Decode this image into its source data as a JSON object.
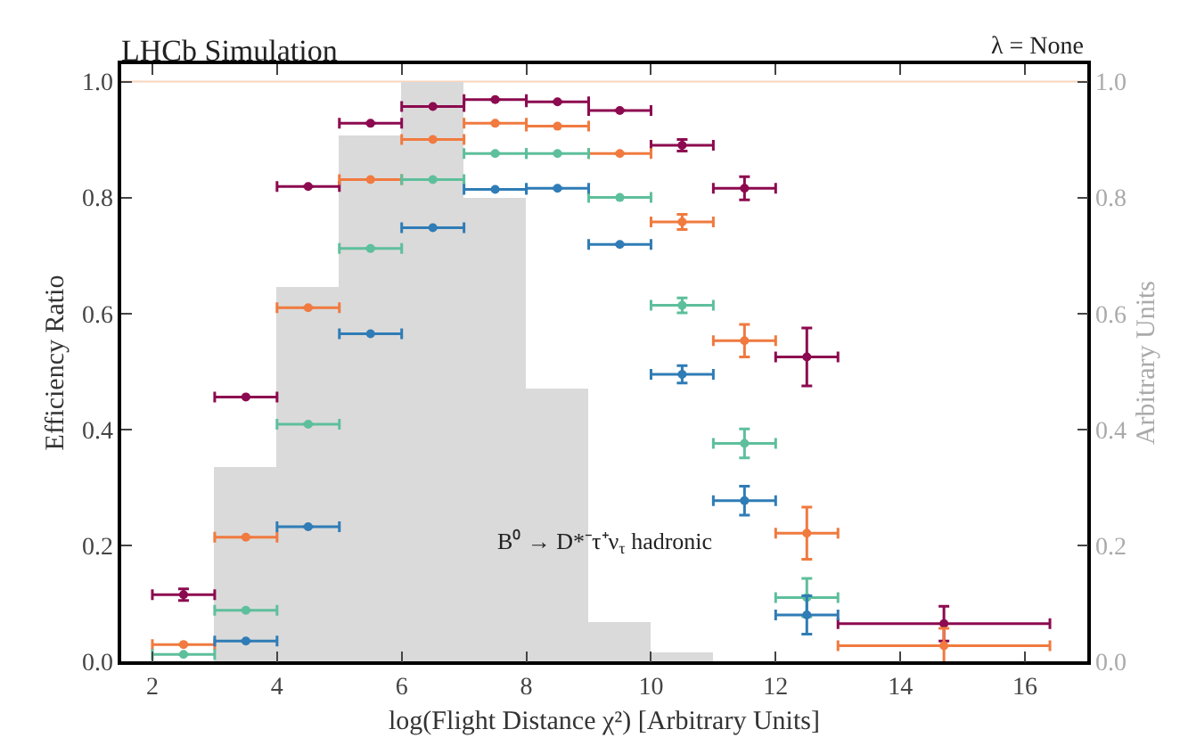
{
  "chart_data": {
    "type": "scatter",
    "title": "LHCb Simulation",
    "xlabel": "log(Flight Distance χ²) [Arbitrary Units]",
    "ylabel": "Efficiency Ratio",
    "y2label": "Arbitrary Units",
    "annotations": [
      "B⁰ → D*⁻τ⁺ν$_{τ}$ hadronic",
      "λ = None"
    ],
    "xlim": [
      1.5,
      17
    ],
    "xticks": [
      2,
      4,
      6,
      8,
      10,
      12,
      14,
      16
    ],
    "ylim": [
      0,
      1.03
    ],
    "yticks": [
      {
        "value": 0,
        "label": "0.0"
      },
      {
        "value": 0.2,
        "label": "0.2"
      },
      {
        "value": 0.4,
        "label": "0.4"
      },
      {
        "value": 0.6,
        "label": "0.6"
      },
      {
        "value": 0.8,
        "label": "0.8"
      },
      {
        "value": 1.0,
        "label": "1.0"
      }
    ],
    "y2lim": [
      0,
      1.03
    ],
    "y2ticks": [
      {
        "value": 0,
        "label": "0.0"
      },
      {
        "value": 0.2,
        "label": "0.2"
      },
      {
        "value": 0.4,
        "label": "0.4"
      },
      {
        "value": 0.6,
        "label": "0.6"
      },
      {
        "value": 0.8,
        "label": "0.8"
      },
      {
        "value": 1.0,
        "label": "1.0"
      }
    ],
    "grid": false,
    "marker": "circle",
    "ref_lines": [
      {
        "axis": "y",
        "value": 1.0,
        "color": "#f8d5bd"
      }
    ],
    "series": [
      {
        "type": "histogram",
        "axis": "y2",
        "color": "#dadada",
        "bins": [
          3,
          4,
          5,
          6,
          7,
          8,
          9,
          10,
          11
        ],
        "values": [
          0.334,
          0.645,
          0.908,
          1.0,
          0.798,
          0.469,
          0.067,
          0.015
        ]
      },
      {
        "color": "#8c0a4f",
        "x": [
          2.5,
          3.5,
          4.5,
          5.5,
          6.5,
          7.5,
          8.5,
          9.5,
          10.5,
          11.5,
          12.5,
          14.7
        ],
        "values": [
          0.115,
          0.456,
          0.819,
          0.928,
          0.957,
          0.969,
          0.965,
          0.95,
          0.89,
          0.816,
          0.525,
          0.065
        ],
        "errors": [
          0.01,
          null,
          null,
          null,
          null,
          null,
          null,
          null,
          0.01,
          0.02,
          0.05,
          0.03
        ],
        "xerrors": [
          0.5,
          0.5,
          0.5,
          0.5,
          0.5,
          0.5,
          0.5,
          0.5,
          0.5,
          0.5,
          0.5,
          1.7
        ]
      },
      {
        "color": "#f07a3f",
        "x": [
          2.5,
          3.5,
          4.5,
          5.5,
          6.5,
          7.5,
          8.5,
          9.5,
          10.5,
          11.5,
          12.5,
          14.7
        ],
        "values": [
          0.029,
          0.214,
          0.61,
          0.831,
          0.9,
          0.928,
          0.923,
          0.876,
          0.758,
          0.553,
          0.221,
          0.027
        ],
        "errors": [
          null,
          null,
          null,
          null,
          null,
          null,
          null,
          null,
          0.013,
          0.028,
          0.045,
          0.03
        ],
        "xerrors": [
          0.5,
          0.5,
          0.5,
          0.5,
          0.5,
          0.5,
          0.5,
          0.5,
          0.5,
          0.5,
          0.5,
          1.7
        ]
      },
      {
        "color": "#5ebf9c",
        "x": [
          2.5,
          3.5,
          4.5,
          5.5,
          6.5,
          7.5,
          8.5,
          9.5,
          10.5,
          11.5,
          12.5
        ],
        "values": [
          0.012,
          0.088,
          0.409,
          0.712,
          0.831,
          0.876,
          0.876,
          0.8,
          0.614,
          0.376,
          0.11
        ],
        "errors": [
          null,
          null,
          null,
          null,
          null,
          null,
          null,
          null,
          0.013,
          0.025,
          0.033
        ],
        "xerrors": [
          0.5,
          0.5,
          0.5,
          0.5,
          0.5,
          0.5,
          0.5,
          0.5,
          0.5,
          0.5,
          0.5
        ]
      },
      {
        "color": "#2f7cb6",
        "x": [
          3.5,
          4.5,
          5.5,
          6.5,
          7.5,
          8.5,
          9.5,
          10.5,
          11.5,
          12.5
        ],
        "values": [
          0.035,
          0.232,
          0.565,
          0.748,
          0.814,
          0.816,
          0.719,
          0.495,
          0.277,
          0.08
        ],
        "errors": [
          null,
          null,
          null,
          null,
          null,
          null,
          null,
          0.015,
          0.025,
          0.033
        ],
        "xerrors": [
          0.5,
          0.5,
          0.5,
          0.5,
          0.5,
          0.5,
          0.5,
          0.5,
          0.5,
          0.5
        ]
      }
    ]
  }
}
